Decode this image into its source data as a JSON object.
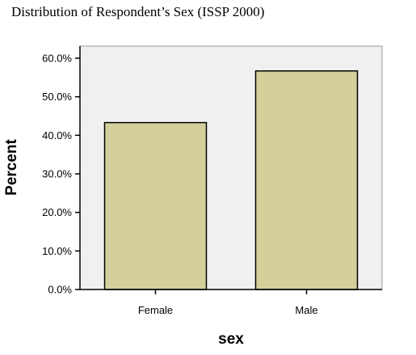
{
  "chart_data": {
    "type": "bar",
    "title": "Distribution of Respondent’s Sex (ISSP 2000)",
    "xlabel": "sex",
    "ylabel": "Percent",
    "categories": [
      "Female",
      "Male"
    ],
    "values": [
      43.3,
      56.7
    ],
    "ylim": [
      0,
      60
    ],
    "yticks": [
      0,
      10,
      20,
      30,
      40,
      50,
      60
    ],
    "ytick_labels": [
      "0.0%",
      "10.0%",
      "20.0%",
      "30.0%",
      "40.0%",
      "50.0%",
      "60.0%"
    ],
    "grid": false,
    "legend": "none",
    "colors": {
      "bar_fill": "#d3d09b",
      "bar_stroke": "#000000",
      "plot_background": "#f0f0f0",
      "plot_border": "#999999"
    }
  }
}
